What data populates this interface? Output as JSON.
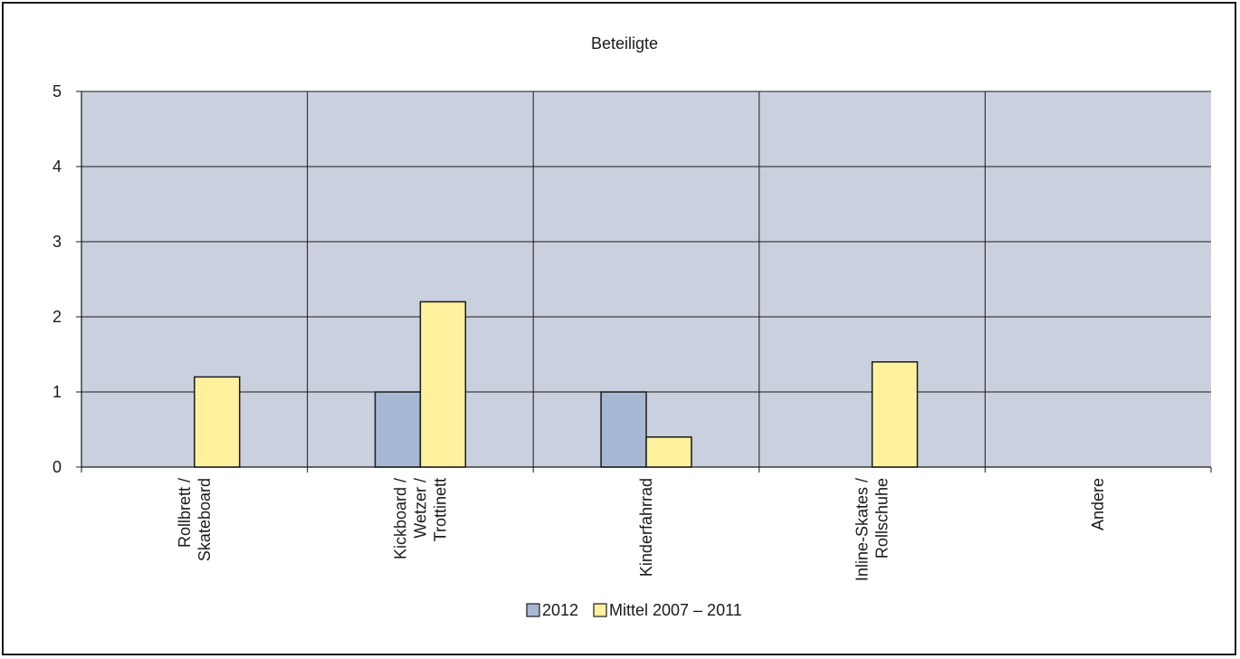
{
  "chart_data": {
    "type": "bar",
    "title": "Beteiligte",
    "categories": [
      [
        "Rollbrett /",
        "Skateboard"
      ],
      [
        "Kickboard /",
        "Wetzer /",
        "Trottinett"
      ],
      [
        "Kinderfahrrad"
      ],
      [
        "Inline-Skates /",
        "Rollschuhe"
      ],
      [
        "Andere"
      ]
    ],
    "series": [
      {
        "name": "2012",
        "values": [
          0,
          1,
          1,
          0,
          0
        ],
        "color": "#a6b8d4"
      },
      {
        "name": "Mittel  2007 – 2011",
        "values": [
          1.2,
          2.2,
          0.4,
          1.4,
          0
        ],
        "color": "#fff19e"
      }
    ],
    "ylim": [
      0,
      5
    ],
    "yticks": [
      "0",
      "1",
      "2",
      "3",
      "4",
      "5"
    ],
    "grid": true,
    "legend": "bottom-center",
    "plot_background": "#cbd0df"
  }
}
